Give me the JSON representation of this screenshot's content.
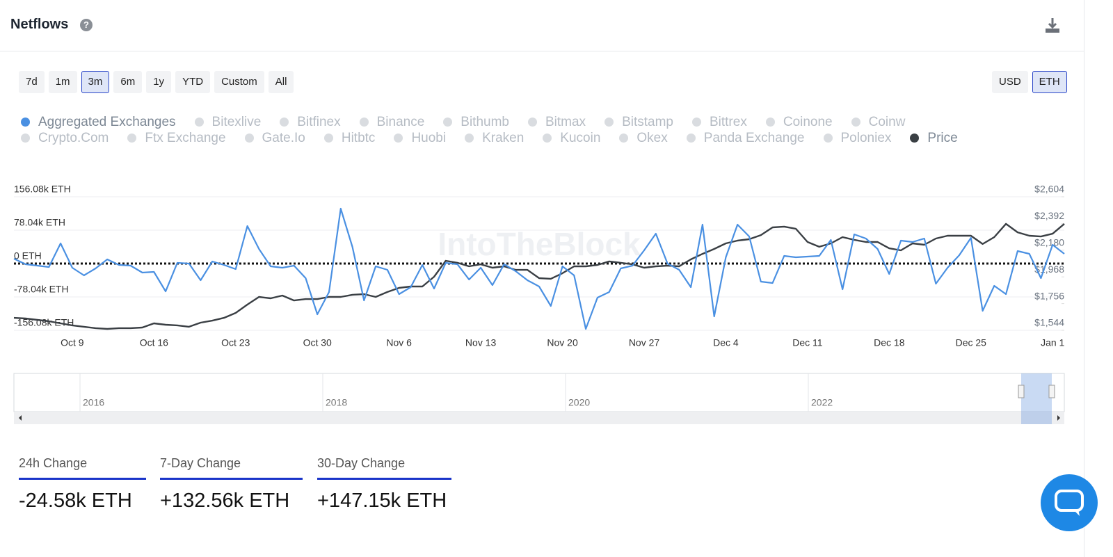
{
  "header": {
    "title": "Netflows"
  },
  "range_buttons": [
    "7d",
    "1m",
    "3m",
    "6m",
    "1y",
    "YTD",
    "Custom",
    "All"
  ],
  "active_range_index": 2,
  "currency_buttons": [
    "USD",
    "ETH"
  ],
  "active_currency_index": 1,
  "inactive_series": [
    "Bitexlive",
    "Bitfinex",
    "Binance",
    "Bithumb",
    "Bitmax",
    "Bitstamp",
    "Bittrex",
    "Coinone",
    "Coinw",
    "Crypto.Com",
    "Ftx Exchange",
    "Gate.Io",
    "Hitbtc",
    "Huobi",
    "Kraken",
    "Kucoin",
    "Okex",
    "Panda Exchange",
    "Poloniex"
  ],
  "watermark": "IntoTheBlock",
  "chart_data": {
    "type": "line",
    "categories": [
      null,
      null,
      null,
      null,
      null,
      "Oct 9",
      null,
      null,
      null,
      null,
      null,
      null,
      "Oct 16",
      null,
      null,
      null,
      null,
      null,
      null,
      "Oct 23",
      null,
      null,
      null,
      null,
      null,
      null,
      "Oct 30",
      null,
      null,
      null,
      null,
      null,
      null,
      "Nov 6",
      null,
      null,
      null,
      null,
      null,
      null,
      "Nov 13",
      null,
      null,
      null,
      null,
      null,
      null,
      "Nov 20",
      null,
      null,
      null,
      null,
      null,
      null,
      "Nov 27",
      null,
      null,
      null,
      null,
      null,
      null,
      "Dec 4",
      null,
      null,
      null,
      null,
      null,
      null,
      "Dec 11",
      null,
      null,
      null,
      null,
      null,
      null,
      "Dec 18",
      null,
      null,
      null,
      null,
      null,
      null,
      "Dec 25",
      null,
      null,
      null,
      null,
      null,
      null,
      "Jan 1",
      null
    ],
    "series": [
      {
        "name": "Aggregated Exchanges",
        "color": "#4a90e2",
        "values": [
          11.4,
          -1.6,
          -4.9,
          -8.1,
          47.1,
          -9.8,
          -27.6,
          -11.4,
          9.8,
          -3.3,
          -4.9,
          -21.1,
          -19.5,
          -65,
          1.6,
          0,
          -39,
          4.9,
          -3.3,
          -13,
          87.8,
          34.1,
          -6.5,
          -9.8,
          -4.9,
          -34.1,
          -118.7,
          -66.7,
          128.4,
          39,
          -86.2,
          -6.5,
          -14.6,
          -71.5,
          -55.3,
          -3.3,
          -58.5,
          1.6,
          -1.6,
          -37.4,
          -9.8,
          -50.4,
          -1.6,
          -17.9,
          -39,
          -53.7,
          -99.2,
          -6.5,
          -27.6,
          -152.8,
          -79.7,
          -66.7,
          -11.4,
          -4.9,
          30.9,
          69.9,
          0,
          -14.6,
          -55.3,
          91,
          -123.6,
          14.6,
          91,
          63.4,
          -42.3,
          -45.5,
          17.9,
          14.6,
          16.3,
          17.9,
          55.3,
          -60.2,
          68.3,
          58.5,
          34.1,
          -24.4,
          53.7,
          50.4,
          58.5,
          -47.1,
          -9.8,
          19.5,
          60.2,
          -110.6,
          -52,
          -71.5,
          29.3,
          22.8,
          -34.1,
          43.9,
          22.8
        ]
      },
      {
        "name": "Price",
        "color": "#3a3f44",
        "axis": "y2",
        "values": [
          1643,
          1638,
          1627,
          1616,
          1599,
          1583,
          1572,
          1561,
          1555,
          1561,
          1561,
          1566,
          1599,
          1588,
          1583,
          1572,
          1605,
          1621,
          1643,
          1682,
          1748,
          1809,
          1798,
          1820,
          1781,
          1792,
          1792,
          1809,
          1809,
          1826,
          1831,
          1809,
          1848,
          1881,
          1892,
          1892,
          1969,
          2096,
          2080,
          2052,
          2068,
          2041,
          2052,
          2024,
          2024,
          1958,
          1953,
          1997,
          2052,
          2052,
          2063,
          2091,
          2080,
          2068,
          2041,
          2052,
          2057,
          2052,
          2107,
          2151,
          2190,
          2234,
          2256,
          2267,
          2300,
          2361,
          2367,
          2350,
          2245,
          2207,
          2234,
          2284,
          2262,
          2245,
          2245,
          2195,
          2179,
          2234,
          2223,
          2273,
          2295,
          2295,
          2295,
          2229,
          2284,
          2389,
          2322,
          2295,
          2289,
          2311,
          2389
        ]
      }
    ],
    "ylim": [
      -156.08,
      156.08
    ],
    "yticks": [
      {
        "value": -156.08,
        "label": "-156.08k ETH"
      },
      {
        "value": -78.04,
        "label": "-78.04k ETH"
      },
      {
        "value": 0,
        "label": "0 ETH"
      },
      {
        "value": 78.04,
        "label": "78.04k ETH"
      },
      {
        "value": 156.08,
        "label": "156.08k ETH"
      }
    ],
    "y2lim": [
      1544,
      2604
    ],
    "y2ticks": [
      {
        "value": 1544,
        "label": "$1,544"
      },
      {
        "value": 1756,
        "label": "$1,756"
      },
      {
        "value": 1968,
        "label": "$1,968"
      },
      {
        "value": 2180,
        "label": "$2,180"
      },
      {
        "value": 2392,
        "label": "$2,392"
      },
      {
        "value": 2604,
        "label": "$2,604"
      }
    ],
    "grid": true
  },
  "navigator": {
    "labels": [
      "2016",
      "2018",
      "2020",
      "2022"
    ]
  },
  "stats": [
    {
      "label": "24h Change",
      "value": "-24.58k ETH"
    },
    {
      "label": "7-Day Change",
      "value": "+132.56k ETH"
    },
    {
      "label": "30-Day Change",
      "value": "+147.15k ETH"
    }
  ]
}
